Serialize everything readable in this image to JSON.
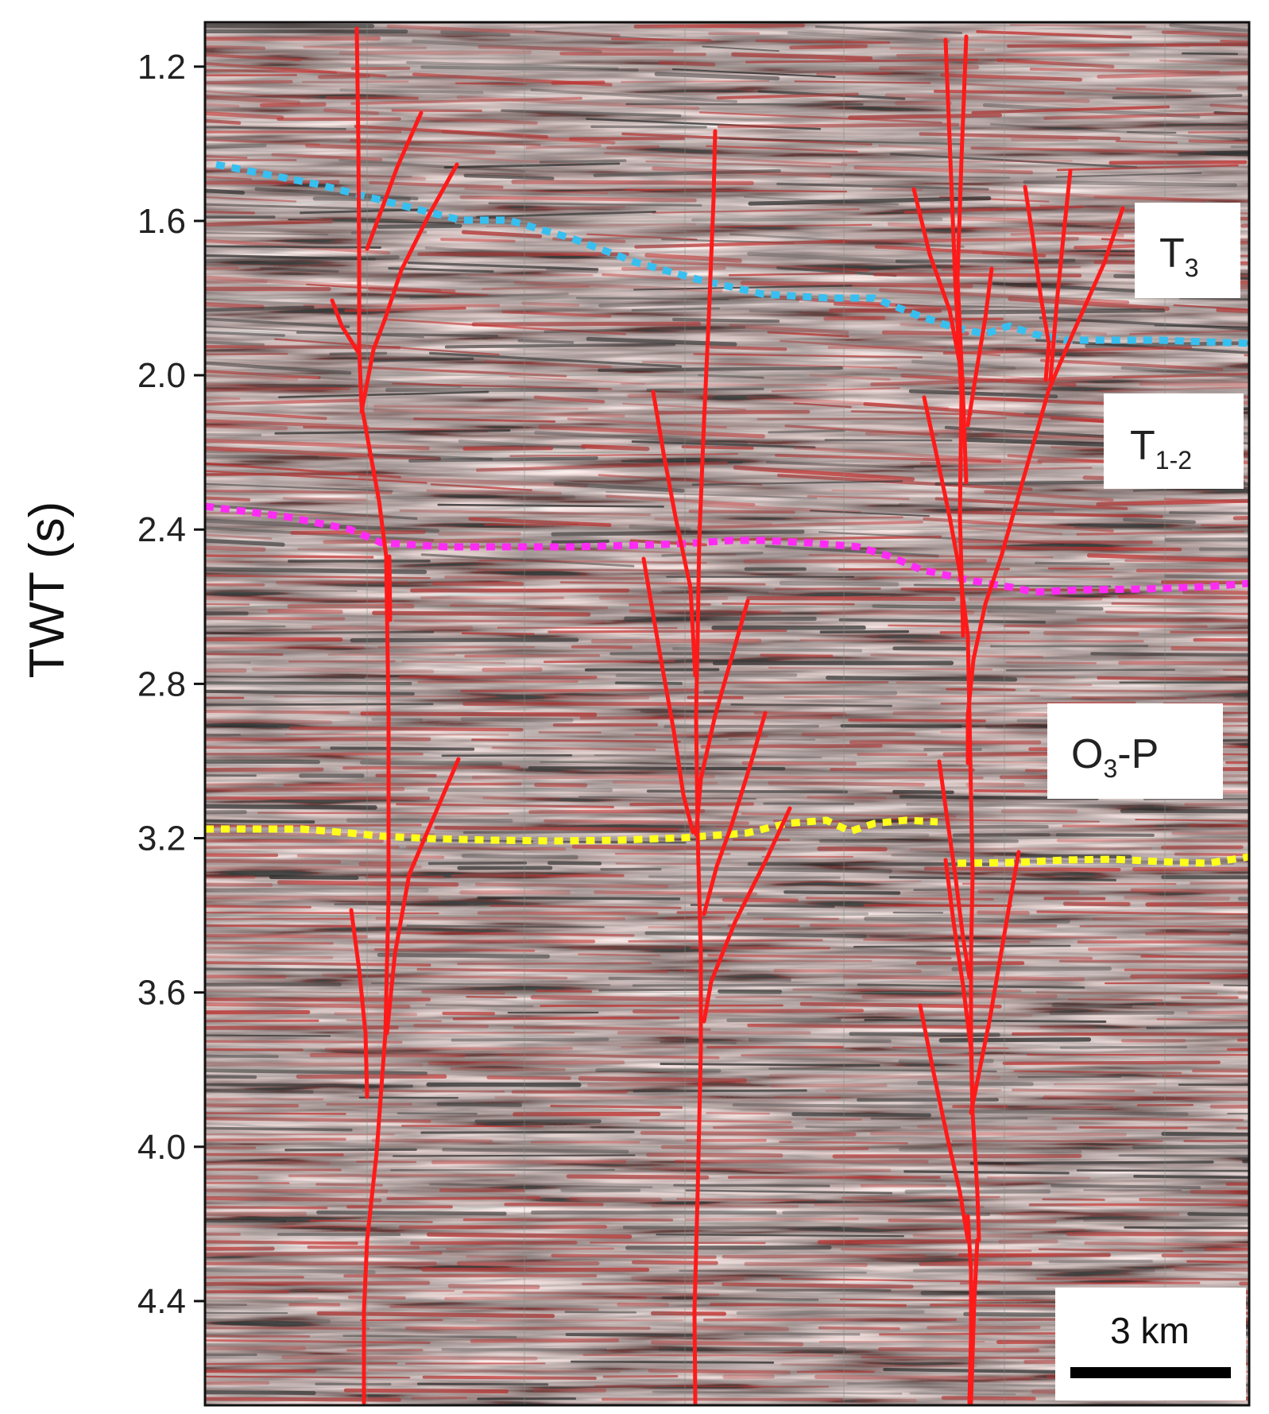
{
  "axis": {
    "title": "TWT (s)",
    "ticks": [
      "1.2",
      "1.6",
      "2.0",
      "2.4",
      "2.8",
      "3.2",
      "3.6",
      "4.0",
      "4.4"
    ],
    "tick_values": [
      1.2,
      1.6,
      2.0,
      2.4,
      2.8,
      3.2,
      3.6,
      4.0,
      4.4
    ],
    "range": [
      1.085,
      4.67
    ]
  },
  "units": [
    {
      "base": "T",
      "sub": "3"
    },
    {
      "base": "T",
      "sub": "1-2"
    },
    {
      "base": "O",
      "sub": "3",
      "rest": "-P"
    }
  ],
  "scale_bar": {
    "label": "3 km"
  },
  "colors": {
    "fault": "#ff1a1a",
    "horizon_top": "#37bff0",
    "horizon_middle": "#ff2bf5",
    "horizon_bottom": "#ffff1a",
    "seismic_red": "#c0312f",
    "seismic_dark": "#2a2a2a",
    "seismic_light": "#e8f3ea"
  }
}
